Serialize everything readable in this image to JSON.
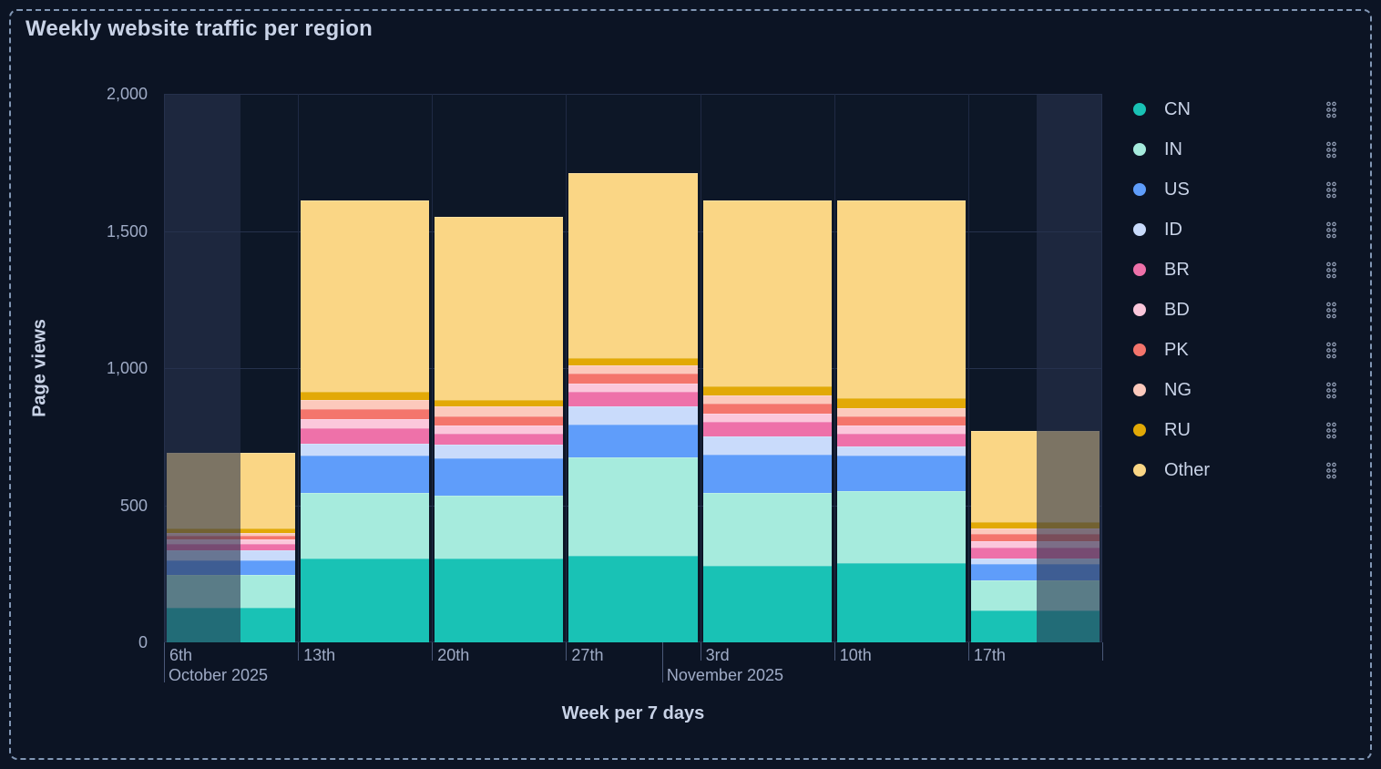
{
  "panel": {
    "title": "Weekly website traffic per region"
  },
  "chart_data": {
    "type": "bar",
    "stacked": true,
    "title": "Weekly website traffic per region",
    "xlabel": "Week per 7 days",
    "ylabel": "Page views",
    "ylim": [
      0,
      2000
    ],
    "grid": true,
    "legend_position": "right",
    "y_axis": {
      "title": "Page views",
      "ticks": [
        {
          "value": 0,
          "label": "0"
        },
        {
          "value": 500,
          "label": "500"
        },
        {
          "value": 1000,
          "label": "1,000"
        },
        {
          "value": 1500,
          "label": "1,500"
        },
        {
          "value": 2000,
          "label": "2,000"
        }
      ]
    },
    "x_axis": {
      "title": "Week per 7 days",
      "week_labels": [
        "6th",
        "13th",
        "20th",
        "27th",
        "3rd",
        "10th",
        "17th"
      ],
      "month_labels": [
        {
          "label": "October 2025",
          "frac": 0.0
        },
        {
          "label": "November 2025",
          "frac": 0.531
        }
      ]
    },
    "categories": [
      "6th",
      "13th",
      "20th",
      "27th",
      "3rd",
      "10th",
      "17th"
    ],
    "series": [
      {
        "name": "CN",
        "color": "#19C2B5",
        "values": [
          125,
          305,
          305,
          315,
          280,
          290,
          115
        ]
      },
      {
        "name": "IN",
        "color": "#A6EBDD",
        "values": [
          120,
          240,
          230,
          360,
          265,
          260,
          110
        ]
      },
      {
        "name": "US",
        "color": "#5F9DFA",
        "values": [
          55,
          135,
          135,
          120,
          140,
          130,
          60
        ]
      },
      {
        "name": "ID",
        "color": "#C9DBFB",
        "values": [
          35,
          45,
          50,
          65,
          65,
          35,
          20
        ]
      },
      {
        "name": "BR",
        "color": "#EE71A9",
        "values": [
          25,
          55,
          40,
          55,
          55,
          45,
          40
        ]
      },
      {
        "name": "BD",
        "color": "#FBC7DB",
        "values": [
          15,
          35,
          30,
          30,
          30,
          30,
          25
        ]
      },
      {
        "name": "PK",
        "color": "#F4756C",
        "values": [
          15,
          35,
          35,
          35,
          35,
          35,
          25
        ]
      },
      {
        "name": "NG",
        "color": "#FCC9BC",
        "values": [
          10,
          35,
          35,
          30,
          30,
          30,
          20
        ]
      },
      {
        "name": "RU",
        "color": "#E2A906",
        "values": [
          15,
          30,
          25,
          25,
          35,
          35,
          25
        ]
      },
      {
        "name": "Other",
        "color": "#FAD685",
        "values": [
          275,
          695,
          665,
          675,
          675,
          720,
          330
        ]
      }
    ],
    "totals": [
      690,
      1610,
      1550,
      1710,
      1610,
      1610,
      770
    ],
    "partial_period_overlays": [
      {
        "column": 0,
        "from_frac": 0.0,
        "to_frac": 0.57
      },
      {
        "column": 6,
        "from_frac": 0.51,
        "to_frac": 1.0
      }
    ]
  },
  "theme": {
    "page_background": "#0C1424",
    "plot_background": "#0D1727",
    "grid_color": "#25314C",
    "axis_text_color": "#9FABC6",
    "heading_text_color": "#C9D3E7",
    "frame_border_color": "#8297B5",
    "partial_overlay_color": "rgba(40,50,78,0.6)"
  }
}
